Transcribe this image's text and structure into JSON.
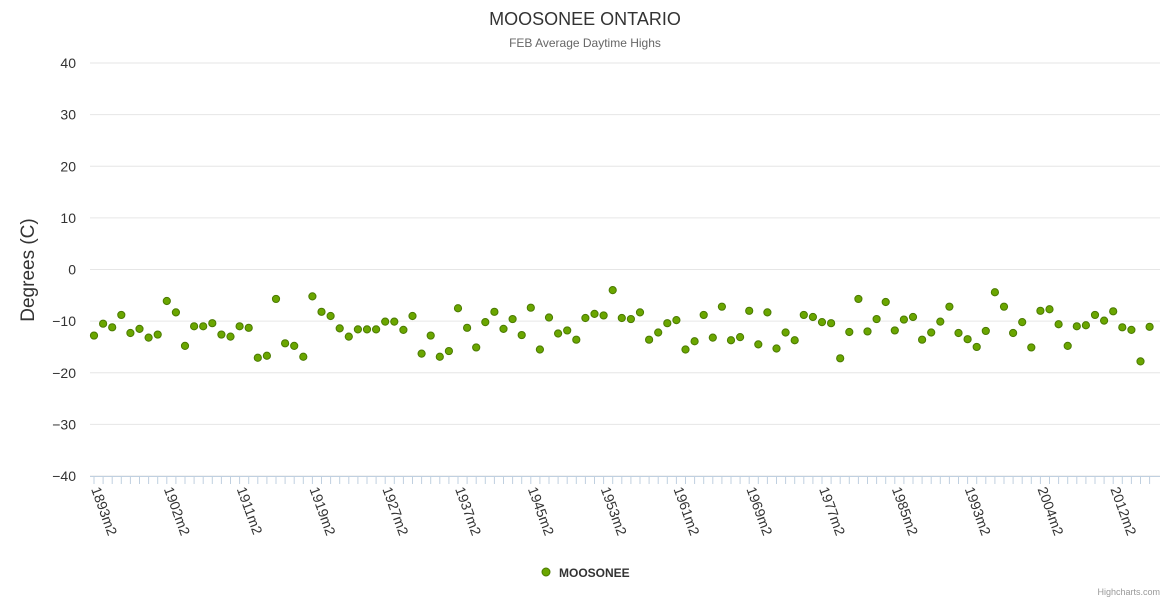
{
  "chart_data": {
    "type": "scatter",
    "title": "MOOSONEE ONTARIO",
    "subtitle": "FEB Average Daytime Highs",
    "ylabel": "Degrees (C)",
    "xlabel": "",
    "ylim": [
      -40,
      40
    ],
    "yticks": [
      40,
      30,
      20,
      10,
      0,
      -10,
      -20,
      -30,
      -40
    ],
    "xticks": [
      "1893m2",
      "1902m2",
      "1911m2",
      "1919m2",
      "1927m2",
      "1937m2",
      "1945m2",
      "1953m2",
      "1961m2",
      "1969m2",
      "1977m2",
      "1985m2",
      "1993m2",
      "2004m2",
      "2012m2"
    ],
    "xtick_indices": [
      0,
      8,
      16,
      24,
      32,
      40,
      48,
      56,
      64,
      72,
      80,
      88,
      96,
      104,
      112
    ],
    "grid": true,
    "legend_position": "bottom-center",
    "series": [
      {
        "name": "MOOSONEE",
        "color": "#6aa600",
        "values": [
          -12.8,
          -10.5,
          -11.2,
          -8.8,
          -12.3,
          -11.5,
          -13.2,
          -12.6,
          -6.1,
          -8.3,
          -14.8,
          -11.0,
          -11.0,
          -10.4,
          -12.6,
          -13.0,
          -11.0,
          -11.3,
          -17.1,
          -16.7,
          -5.7,
          -14.3,
          -14.8,
          -16.9,
          -5.2,
          -8.2,
          -9.0,
          -11.4,
          -13.0,
          -11.6,
          -11.6,
          -11.6,
          -10.1,
          -10.1,
          -11.7,
          -9.0,
          -16.3,
          -12.8,
          -16.9,
          -15.8,
          -7.5,
          -11.3,
          -15.1,
          -10.2,
          -8.2,
          -11.5,
          -9.6,
          -12.7,
          -7.4,
          -15.5,
          -9.3,
          -12.4,
          -11.8,
          -13.6,
          -9.4,
          -8.6,
          -8.9,
          -4.0,
          -9.4,
          -9.6,
          -8.3,
          -13.6,
          -12.2,
          -10.4,
          -9.8,
          -15.5,
          -13.9,
          -8.8,
          -13.2,
          -7.2,
          -13.7,
          -13.1,
          -8.0,
          -14.5,
          -8.3,
          -15.3,
          -12.2,
          -13.7,
          -8.8,
          -9.2,
          -10.2,
          -10.4,
          -17.2,
          -12.1,
          -5.7,
          -12.0,
          -9.6,
          -6.3,
          -11.8,
          -9.7,
          -9.2,
          -13.6,
          -12.2,
          -10.1,
          -7.2,
          -12.3,
          -13.5,
          -15.0,
          -11.9,
          -4.4,
          -7.2,
          -12.3,
          -10.2,
          -15.1,
          -8.0,
          -7.7,
          -10.6,
          -14.8,
          -11.0,
          -10.8,
          -8.8,
          -9.9,
          -8.1,
          -11.2,
          -11.7,
          -17.8,
          -11.1
        ]
      }
    ]
  },
  "credits": "Highcharts.com"
}
